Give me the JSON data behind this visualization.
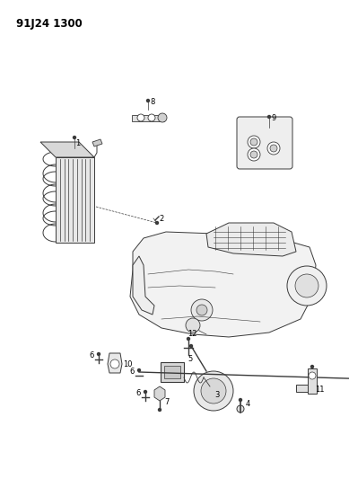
{
  "title": "91J24 1300",
  "background_color": "#ffffff",
  "fig_width": 3.89,
  "fig_height": 5.33,
  "dpi": 100,
  "line_color": "#3a3a3a",
  "text_color": "#000000",
  "label_fontsize": 6.0,
  "title_fontsize": 8.5
}
